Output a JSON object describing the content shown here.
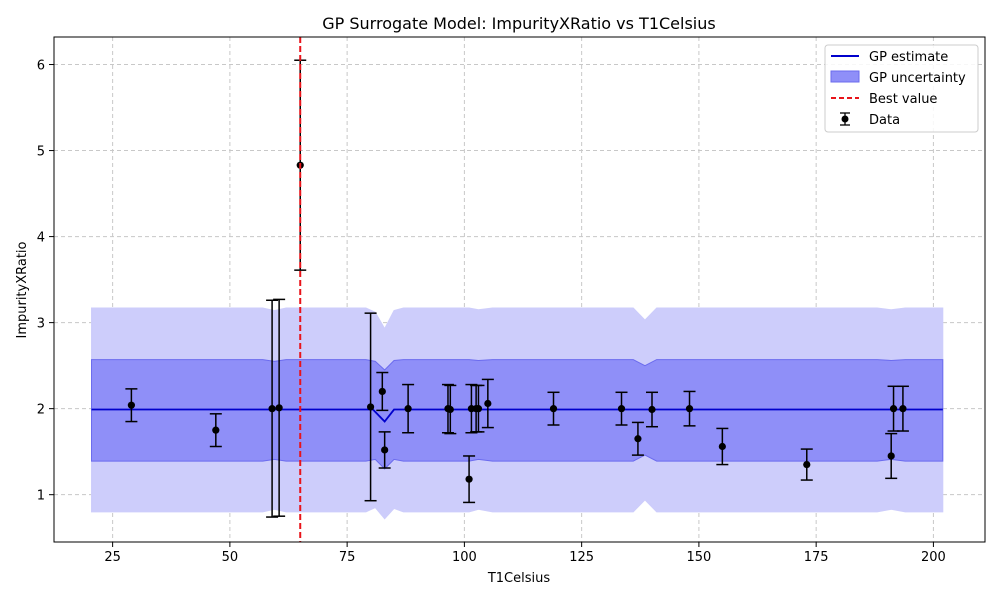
{
  "chart_data": {
    "type": "line",
    "title": "GP Surrogate Model: ImpurityXRatio vs T1Celsius",
    "xlabel": "T1Celsius",
    "ylabel": "ImpurityXRatio",
    "xlim": [
      12.5,
      211
    ],
    "ylim": [
      0.45,
      6.32
    ],
    "xticks": [
      25,
      50,
      75,
      100,
      125,
      150,
      175,
      200
    ],
    "yticks": [
      1,
      2,
      3,
      4,
      5,
      6
    ],
    "grid": true,
    "legend_position": "top-right",
    "legend": {
      "gp_estimate": "GP estimate",
      "gp_uncertainty": "GP uncertainty",
      "best_value": "Best value",
      "data": "Data"
    },
    "colors": {
      "gp_estimate": "#0000cc",
      "band_inner": "#8f8ff8",
      "band_outer": "#cdcdfb",
      "band_edge": "#6b6bee",
      "best_value": "#e8141a",
      "data": "#000000",
      "grid": "#c8c8c8"
    },
    "gp_estimate": {
      "x": [
        20.5,
        80.5,
        83,
        85,
        202
      ],
      "y": [
        1.99,
        1.99,
        1.85,
        1.99,
        1.99
      ]
    },
    "gp_uncertainty_inner": {
      "x": [
        20.5,
        57,
        59.5,
        62,
        79,
        81,
        83,
        85,
        87,
        101,
        103,
        106,
        136,
        138.5,
        141,
        188,
        191,
        194,
        202
      ],
      "upper": [
        2.57,
        2.57,
        2.55,
        2.57,
        2.57,
        2.55,
        2.45,
        2.56,
        2.57,
        2.57,
        2.56,
        2.57,
        2.57,
        2.5,
        2.57,
        2.57,
        2.56,
        2.57,
        2.57
      ],
      "lower": [
        1.39,
        1.39,
        1.41,
        1.39,
        1.39,
        1.41,
        1.3,
        1.41,
        1.39,
        1.39,
        1.41,
        1.39,
        1.39,
        1.46,
        1.39,
        1.39,
        1.41,
        1.39,
        1.39
      ]
    },
    "gp_uncertainty_outer": {
      "x": [
        20.5,
        57,
        59.5,
        62,
        79,
        81,
        83,
        85,
        87,
        101,
        103,
        106,
        136,
        138.5,
        141,
        188,
        191,
        194,
        202
      ],
      "upper": [
        3.17,
        3.17,
        3.14,
        3.17,
        3.17,
        3.12,
        2.93,
        3.14,
        3.17,
        3.17,
        3.15,
        3.17,
        3.17,
        3.03,
        3.17,
        3.17,
        3.15,
        3.17,
        3.17
      ],
      "lower": [
        0.8,
        0.8,
        0.83,
        0.8,
        0.8,
        0.85,
        0.72,
        0.84,
        0.8,
        0.8,
        0.83,
        0.8,
        0.8,
        0.94,
        0.8,
        0.8,
        0.83,
        0.8,
        0.8
      ]
    },
    "best_value_x": 65,
    "data": [
      {
        "x": 29,
        "y": 2.04,
        "err": 0.19
      },
      {
        "x": 47,
        "y": 1.75,
        "err": 0.19
      },
      {
        "x": 59,
        "y": 2.0,
        "err": 1.26
      },
      {
        "x": 60.5,
        "y": 2.01,
        "err": 1.26
      },
      {
        "x": 65,
        "y": 4.83,
        "err": 1.22
      },
      {
        "x": 80,
        "y": 2.02,
        "err": 1.09
      },
      {
        "x": 82.5,
        "y": 2.2,
        "err": 0.22
      },
      {
        "x": 83,
        "y": 1.52,
        "err": 0.21
      },
      {
        "x": 88,
        "y": 2.0,
        "err": 0.28
      },
      {
        "x": 96.5,
        "y": 2.0,
        "err": 0.28
      },
      {
        "x": 97,
        "y": 1.99,
        "err": 0.28
      },
      {
        "x": 101,
        "y": 1.18,
        "err": 0.27
      },
      {
        "x": 101.5,
        "y": 2.0,
        "err": 0.28
      },
      {
        "x": 102.5,
        "y": 2.0,
        "err": 0.27
      },
      {
        "x": 103,
        "y": 2.0,
        "err": 0.27
      },
      {
        "x": 105,
        "y": 2.06,
        "err": 0.28
      },
      {
        "x": 119,
        "y": 2.0,
        "err": 0.19
      },
      {
        "x": 133.5,
        "y": 2.0,
        "err": 0.19
      },
      {
        "x": 137,
        "y": 1.65,
        "err": 0.19
      },
      {
        "x": 140,
        "y": 1.99,
        "err": 0.2
      },
      {
        "x": 148,
        "y": 2.0,
        "err": 0.2
      },
      {
        "x": 155,
        "y": 1.56,
        "err": 0.21
      },
      {
        "x": 173,
        "y": 1.35,
        "err": 0.18
      },
      {
        "x": 191,
        "y": 1.45,
        "err": 0.26
      },
      {
        "x": 191.5,
        "y": 2.0,
        "err": 0.26
      },
      {
        "x": 193.5,
        "y": 2.0,
        "err": 0.26
      }
    ]
  }
}
